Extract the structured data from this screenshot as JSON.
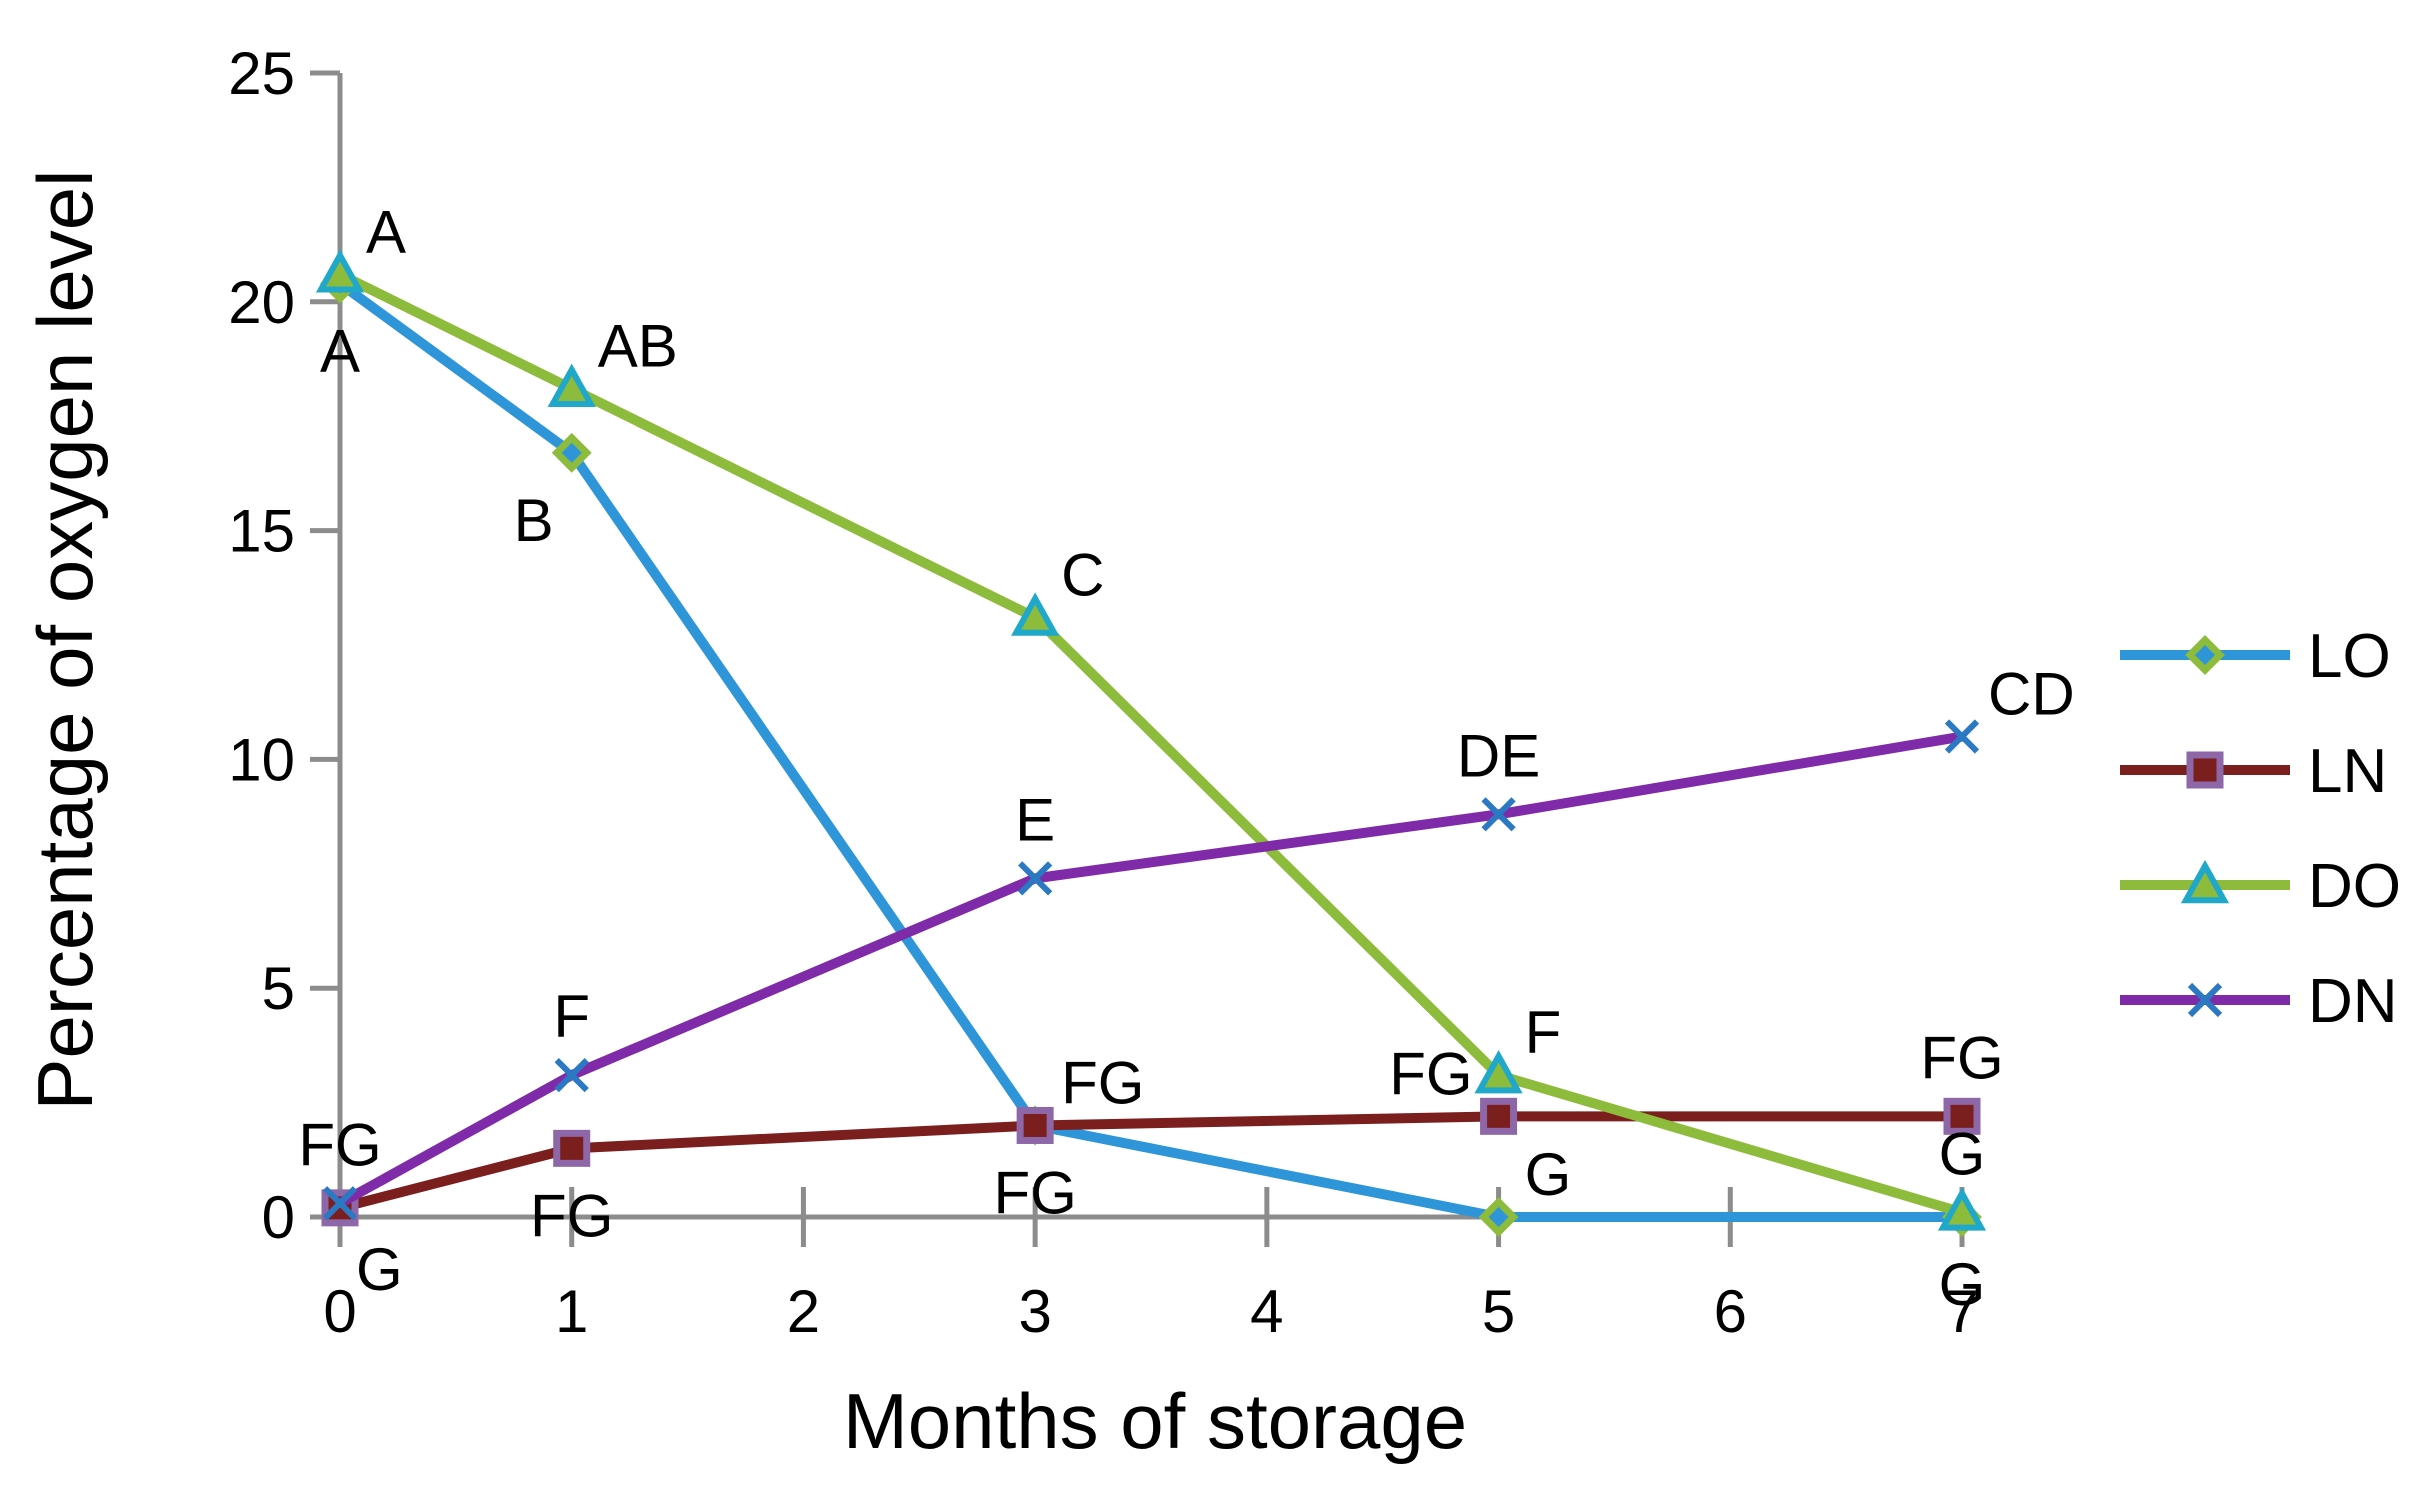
{
  "chart_data": {
    "type": "line",
    "title": "",
    "xlabel": "Months of storage",
    "ylabel": "Percentage of oxygen level",
    "xlim": [
      0,
      7
    ],
    "ylim": [
      0,
      25
    ],
    "x_ticks": [
      "0",
      "1",
      "2",
      "3",
      "4",
      "5",
      "6",
      "7"
    ],
    "y_ticks": [
      "0",
      "5",
      "10",
      "15",
      "20",
      "25"
    ],
    "grid": false,
    "legend_position": "right",
    "series": [
      {
        "name": "LO",
        "color": "#2E96D8",
        "marker": "diamond",
        "marker_fill": "#2E96D8",
        "marker_stroke": "#8DBB3B",
        "x": [
          0,
          1,
          3,
          5,
          7
        ],
        "y": [
          20.4,
          16.7,
          2.0,
          0.0,
          0.0
        ],
        "labels": [
          "A",
          "B",
          "FG",
          "G",
          "G"
        ],
        "label_positions": [
          "below",
          "below-left",
          "below",
          "above-right",
          "below"
        ]
      },
      {
        "name": "LN",
        "color": "#7B1E1E",
        "marker": "square",
        "marker_fill": "#7B1E1E",
        "marker_stroke": "#8E67A8",
        "x": [
          0,
          1,
          3,
          5,
          7
        ],
        "y": [
          0.2,
          1.5,
          2.0,
          2.2,
          2.2
        ],
        "labels": [
          "G",
          "FG",
          "FG",
          "FG",
          "FG"
        ],
        "label_positions": [
          "below-right",
          "below",
          "above-right",
          "above-left",
          "above"
        ]
      },
      {
        "name": "DO",
        "color": "#8DBB3B",
        "marker": "triangle",
        "marker_fill": "#8DBB3B",
        "marker_stroke": "#1FA8C9",
        "x": [
          0,
          1,
          3,
          5,
          7
        ],
        "y": [
          20.6,
          18.1,
          13.1,
          3.1,
          0.1
        ],
        "labels": [
          "A",
          "AB",
          "C",
          "F",
          "G"
        ],
        "label_positions": [
          "above-right",
          "above-right",
          "above-right",
          "above-right",
          "above"
        ]
      },
      {
        "name": "DN",
        "color": "#7F2AA9",
        "marker": "x",
        "marker_fill": "none",
        "marker_stroke": "#2B79C2",
        "x": [
          0,
          1,
          3,
          5,
          7
        ],
        "y": [
          0.3,
          3.1,
          7.4,
          8.8,
          10.5
        ],
        "labels": [
          "FG",
          "F",
          "E",
          "DE",
          "CD"
        ],
        "label_positions": [
          "above",
          "above",
          "above",
          "above",
          "above-right"
        ]
      }
    ]
  }
}
